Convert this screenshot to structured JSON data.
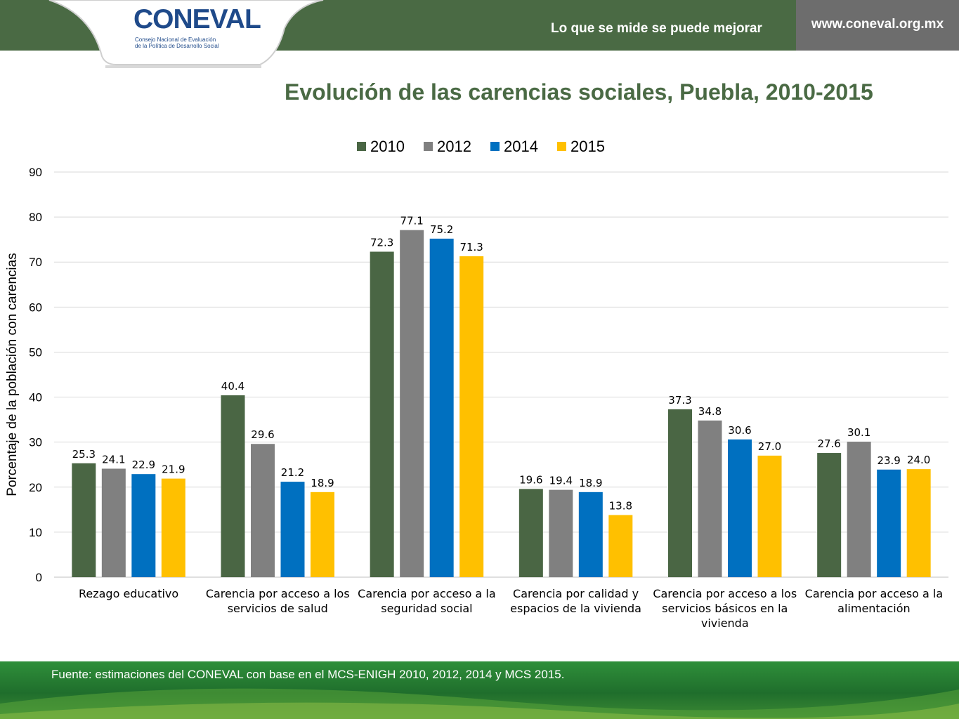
{
  "header": {
    "logo_text": "CONEVAL",
    "logo_subtitle_line1": "Consejo Nacional de Evaluación",
    "logo_subtitle_line2": "de la Política de Desarrollo Social",
    "slogan": "Lo que se mide se puede mejorar",
    "url": "www.coneval.org.mx"
  },
  "colors": {
    "header_green": "#4a6a44",
    "url_gray": "#6d6d6d",
    "title_green": "#4a6a44",
    "footer_green": "#1f6e2c"
  },
  "chart_data": {
    "type": "bar",
    "title": "Evolución de las carencias sociales, Puebla, 2010-2015",
    "ylabel": "Porcentaje de la población con carencias",
    "xlabel": "",
    "ylim": [
      0,
      90
    ],
    "yticks": [
      0,
      10,
      20,
      30,
      40,
      50,
      60,
      70,
      80,
      90
    ],
    "grid": true,
    "legend_position": "top",
    "categories": [
      [
        "Rezago educativo"
      ],
      [
        "Carencia por acceso a los",
        "servicios de salud"
      ],
      [
        "Carencia por acceso a la",
        "seguridad social"
      ],
      [
        "Carencia por calidad y",
        "espacios de la vivienda"
      ],
      [
        "Carencia por acceso a los",
        "servicios básicos en la",
        "vivienda"
      ],
      [
        "Carencia por acceso a la",
        "alimentación"
      ]
    ],
    "series": [
      {
        "name": "2010",
        "color": "#4a6644",
        "values": [
          25.3,
          40.4,
          72.3,
          19.6,
          37.3,
          27.6
        ]
      },
      {
        "name": "2012",
        "color": "#808080",
        "values": [
          24.1,
          29.6,
          77.1,
          19.4,
          34.8,
          30.1
        ]
      },
      {
        "name": "2014",
        "color": "#0070c0",
        "values": [
          22.9,
          21.2,
          75.2,
          18.9,
          30.6,
          23.9
        ]
      },
      {
        "name": "2015",
        "color": "#ffc000",
        "values": [
          21.9,
          18.9,
          71.3,
          13.8,
          27.0,
          24.0
        ]
      }
    ]
  },
  "footer": {
    "source": "Fuente: estimaciones del CONEVAL con base en el MCS-ENIGH 2010, 2012, 2014 y MCS 2015."
  }
}
